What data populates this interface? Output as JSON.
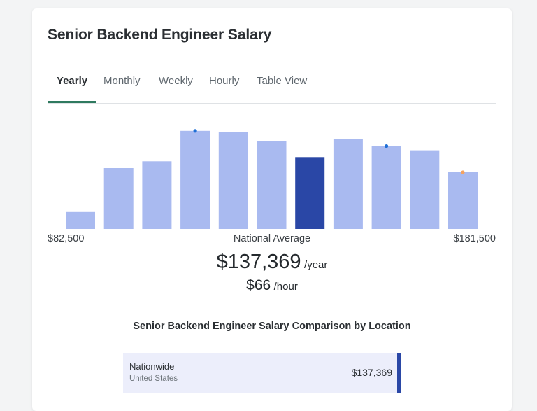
{
  "page": {
    "title": "Senior Backend Engineer Salary"
  },
  "tabs": [
    {
      "label": "Yearly",
      "active": true
    },
    {
      "label": "Monthly",
      "active": false
    },
    {
      "label": "Weekly",
      "active": false
    },
    {
      "label": "Hourly",
      "active": false
    },
    {
      "label": "Table View",
      "active": false
    }
  ],
  "chart_data": {
    "type": "bar",
    "title": "",
    "xlabel": "",
    "ylabel": "",
    "values": [
      10,
      36,
      40,
      58,
      57.5,
      52,
      42.5,
      53,
      49,
      46.5,
      33.5
    ],
    "highlight_index": 6,
    "markers": [
      {
        "bar_index": 3,
        "color": "#1f6fd6"
      },
      {
        "bar_index": 8,
        "color": "#1f6fd6"
      },
      {
        "bar_index": 10,
        "color": "#f4a261"
      }
    ],
    "colors": {
      "bar": "#a9baf0",
      "highlight": "#2a47a6"
    },
    "ylim": [
      0,
      60
    ],
    "range_min_label": "$82,500",
    "range_max_label": "$181,500",
    "center_label": "National Average"
  },
  "salary": {
    "yearly_amount": "$137,369",
    "yearly_unit": "/year",
    "hourly_amount": "$66",
    "hourly_unit": "/hour"
  },
  "comparison": {
    "title": "Senior Backend Engineer Salary Comparison by Location",
    "rows": [
      {
        "name": "Nationwide",
        "subtitle": "United States",
        "value": "$137,369"
      }
    ]
  },
  "colors": {
    "accent": "#2f7a5f",
    "bar": "#a9baf0",
    "bar_highlight": "#2a47a6",
    "row_bg": "#eceefb"
  }
}
